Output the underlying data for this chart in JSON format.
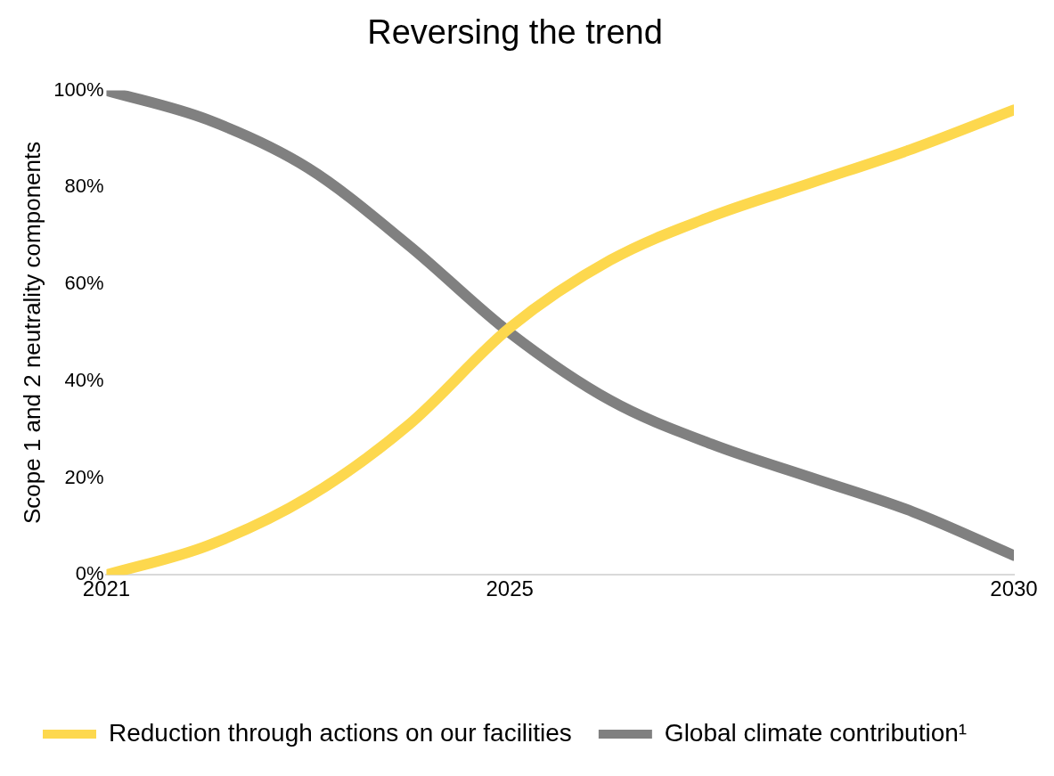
{
  "chart_data": {
    "type": "line",
    "title": "Reversing the trend",
    "ylabel": "Scope 1 and 2 neutrality components",
    "x": [
      2021,
      2022,
      2023,
      2024,
      2025,
      2026,
      2027,
      2028,
      2029,
      2030
    ],
    "xlim": [
      2021,
      2030
    ],
    "xticks": [
      2021,
      2025,
      2030
    ],
    "ylim": [
      0,
      100
    ],
    "yticks": [
      {
        "value": 0,
        "label": "0%"
      },
      {
        "value": 20,
        "label": "20%"
      },
      {
        "value": 40,
        "label": "40%"
      },
      {
        "value": 60,
        "label": "60%"
      },
      {
        "value": 80,
        "label": "80%"
      },
      {
        "value": 100,
        "label": "100%"
      }
    ],
    "series": [
      {
        "name": "Reduction through actions on our facilities",
        "color": "#fdd84e",
        "values": [
          0,
          6,
          16,
          31,
          51,
          65,
          74,
          81,
          88,
          96
        ]
      },
      {
        "name": "Global climate contribution¹",
        "color": "#808080",
        "values": [
          100,
          94,
          84,
          68,
          50,
          36,
          27,
          20,
          13,
          4
        ]
      }
    ],
    "grid": false,
    "legend": "bottom",
    "marker": "none",
    "line_style": "solid"
  }
}
